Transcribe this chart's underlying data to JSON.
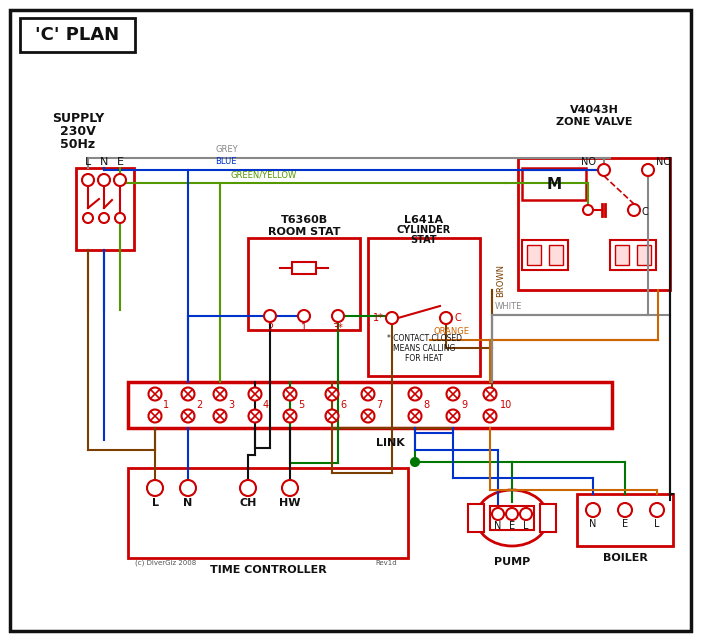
{
  "bg": "#ffffff",
  "RED": "#cc0000",
  "BLUE": "#0033cc",
  "GREEN": "#007700",
  "BROWN": "#7b3f00",
  "GREY": "#888888",
  "ORANGE": "#cc6600",
  "WHITE_W": "#888888",
  "BK": "#111111",
  "GYE": "#559900",
  "title": "'C' PLAN",
  "supply_lines": [
    "SUPPLY",
    "230V",
    "50Hz"
  ],
  "zone_valve": [
    "V4043H",
    "ZONE VALVE"
  ],
  "room_stat": [
    "T6360B",
    "ROOM STAT"
  ],
  "cyl_stat": [
    "L641A",
    "CYLINDER",
    "STAT"
  ],
  "tc_label": "TIME CONTROLLER",
  "pump_label": "PUMP",
  "boiler_label": "BOILER",
  "link_label": "LINK",
  "copyright": "(c) DiverGiz 2008",
  "rev": "Rev1d"
}
